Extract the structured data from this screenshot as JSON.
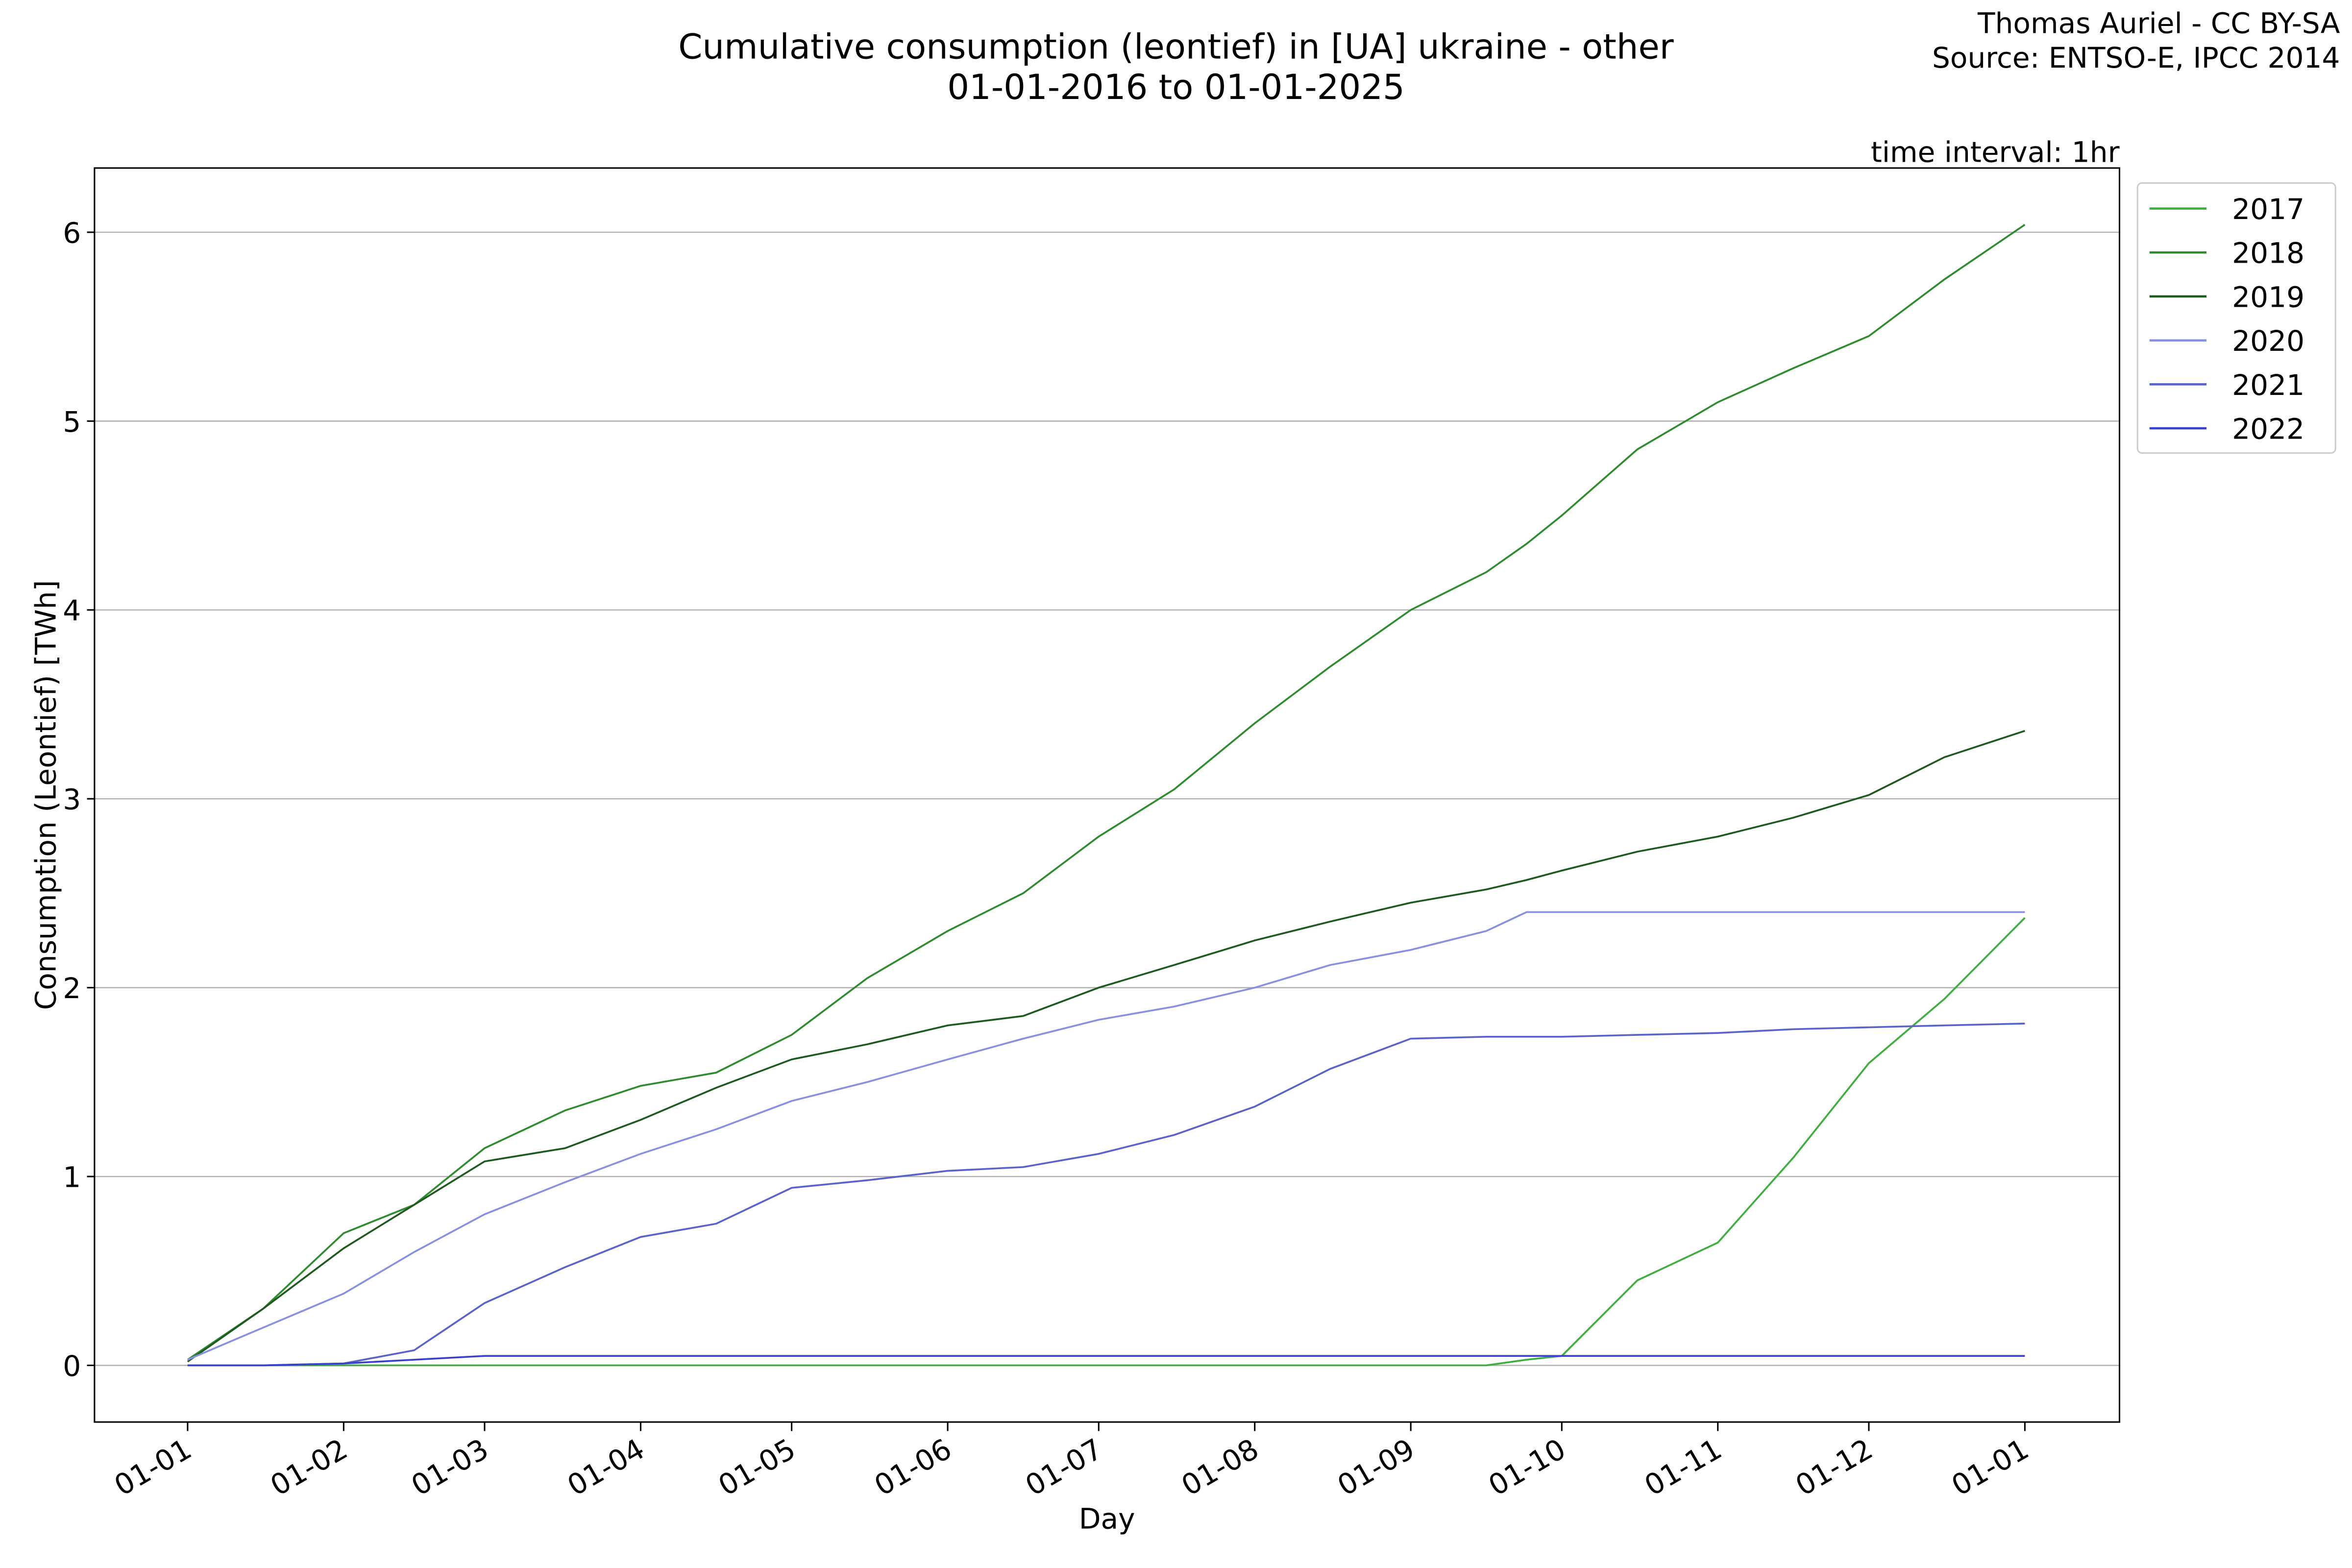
{
  "chart_data": {
    "type": "line",
    "title": "Cumulative consumption (leontief) in [UA] ukraine - other",
    "subtitle": "01-01-2016 to 01-01-2025",
    "credit": [
      "Thomas Auriel - CC BY-SA",
      "Source: ENTSO-E, IPCC 2014"
    ],
    "annotation": "time interval: 1hr",
    "x_label": "Day",
    "y_label": "Consumption (Leontief) [TWh]",
    "x": [
      0,
      15,
      31,
      45,
      59,
      75,
      90,
      105,
      120,
      135,
      151,
      166,
      181,
      196,
      212,
      227,
      243,
      258,
      266,
      273,
      288,
      304,
      319,
      334,
      349,
      365
    ],
    "series": [
      {
        "name": "2017",
        "color": "#3fae3f",
        "values": [
          0,
          0,
          0,
          0,
          0,
          0,
          0,
          0,
          0,
          0,
          0,
          0,
          0,
          0,
          0,
          0,
          0,
          0,
          0.03,
          0.05,
          0.45,
          0.65,
          1.1,
          1.6,
          1.94,
          2.37
        ]
      },
      {
        "name": "2018",
        "color": "#2e8b2e",
        "values": [
          0.03,
          0.3,
          0.7,
          0.85,
          1.15,
          1.35,
          1.48,
          1.55,
          1.75,
          2.05,
          2.3,
          2.5,
          2.8,
          3.05,
          3.4,
          3.7,
          4.0,
          4.2,
          4.35,
          4.5,
          4.85,
          5.1,
          5.28,
          5.45,
          5.75,
          6.04
        ]
      },
      {
        "name": "2019",
        "color": "#1e5a1e",
        "values": [
          0.02,
          0.3,
          0.62,
          0.85,
          1.08,
          1.15,
          1.3,
          1.47,
          1.62,
          1.7,
          1.8,
          1.85,
          2.0,
          2.12,
          2.25,
          2.35,
          2.45,
          2.52,
          2.57,
          2.62,
          2.72,
          2.8,
          2.9,
          3.02,
          3.22,
          3.36
        ]
      },
      {
        "name": "2020",
        "color": "#8890e0",
        "values": [
          0.03,
          0.2,
          0.38,
          0.6,
          0.8,
          0.97,
          1.12,
          1.25,
          1.4,
          1.5,
          1.62,
          1.73,
          1.83,
          1.9,
          2.0,
          2.12,
          2.2,
          2.3,
          2.4,
          2.4,
          2.4,
          2.4,
          2.4,
          2.4,
          2.4,
          2.4
        ]
      },
      {
        "name": "2021",
        "color": "#5a62cc",
        "values": [
          0,
          0,
          0.01,
          0.08,
          0.33,
          0.52,
          0.68,
          0.75,
          0.94,
          0.98,
          1.03,
          1.05,
          1.12,
          1.22,
          1.37,
          1.57,
          1.73,
          1.74,
          1.74,
          1.74,
          1.75,
          1.76,
          1.78,
          1.79,
          1.8,
          1.81
        ]
      },
      {
        "name": "2022",
        "color": "#3a40cc",
        "values": [
          0,
          0,
          0.01,
          0.03,
          0.05,
          0.05,
          0.05,
          0.05,
          0.05,
          0.05,
          0.05,
          0.05,
          0.05,
          0.05,
          0.05,
          0.05,
          0.05,
          0.05,
          0.05,
          0.05,
          0.05,
          0.05,
          0.05,
          0.05,
          0.05,
          0.05
        ]
      }
    ],
    "xlim": [
      -18.5,
      383.8
    ],
    "xticks": [
      {
        "value": 0,
        "label": "01-01"
      },
      {
        "value": 31,
        "label": "01-02"
      },
      {
        "value": 59,
        "label": "01-03"
      },
      {
        "value": 90,
        "label": "01-04"
      },
      {
        "value": 120,
        "label": "01-05"
      },
      {
        "value": 151,
        "label": "01-06"
      },
      {
        "value": 181,
        "label": "01-07"
      },
      {
        "value": 212,
        "label": "01-08"
      },
      {
        "value": 243,
        "label": "01-09"
      },
      {
        "value": 273,
        "label": "01-10"
      },
      {
        "value": 304,
        "label": "01-11"
      },
      {
        "value": 334,
        "label": "01-12"
      },
      {
        "value": 365,
        "label": "01-01"
      }
    ],
    "ylim": [
      -0.3,
      6.34
    ],
    "yticks": [
      0,
      1,
      2,
      3,
      4,
      5,
      6
    ],
    "grid": true,
    "legend": "outside-right"
  }
}
